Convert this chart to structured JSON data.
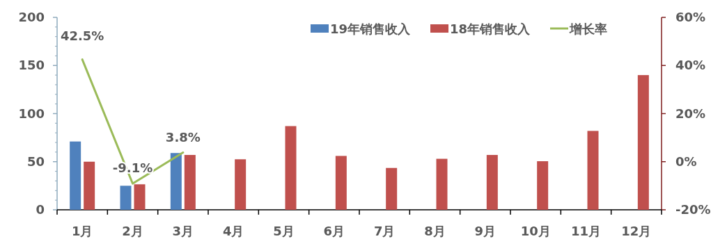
{
  "chart_data": {
    "type": "bar",
    "categories": [
      "1月",
      "2月",
      "3月",
      "4月",
      "5月",
      "6月",
      "7月",
      "8月",
      "9月",
      "10月",
      "11月",
      "12月"
    ],
    "series": [
      {
        "name": "19年销售收入",
        "color": "#4f81bd",
        "values": [
          71,
          25,
          59,
          null,
          null,
          null,
          null,
          null,
          null,
          null,
          null,
          null
        ]
      },
      {
        "name": "18年销售收入",
        "color": "#c0504d",
        "values": [
          50,
          26.5,
          57,
          52.5,
          87,
          56,
          43.5,
          53,
          57,
          50.5,
          82,
          140
        ]
      },
      {
        "name": "增长率",
        "type": "line",
        "axis": "y2",
        "color": "#9bbb59",
        "values": [
          42.5,
          -9.1,
          3.8,
          null,
          null,
          null,
          null,
          null,
          null,
          null,
          null,
          null
        ],
        "value_labels": [
          "42.5%",
          "-9.1%",
          "3.8%",
          null,
          null,
          null,
          null,
          null,
          null,
          null,
          null,
          null
        ]
      }
    ],
    "ylim": [
      0,
      200
    ],
    "yticks": [
      0,
      50,
      100,
      150,
      200
    ],
    "y2lim": [
      -20,
      60
    ],
    "y2ticks": [
      {
        "value": -20,
        "label": "-20%"
      },
      {
        "value": 0,
        "label": "0%"
      },
      {
        "value": 20,
        "label": "20%"
      },
      {
        "value": 40,
        "label": "40%"
      },
      {
        "value": 60,
        "label": "60%"
      }
    ],
    "grid": false,
    "legend": "top right"
  }
}
